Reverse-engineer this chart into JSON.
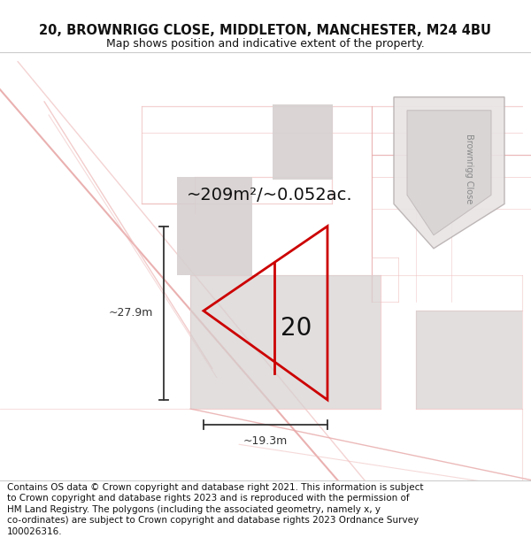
{
  "title": "20, BROWNRIGG CLOSE, MIDDLETON, MANCHESTER, M24 4BU",
  "subtitle": "Map shows position and indicative extent of the property.",
  "area_label": "~209m²/~0.052ac.",
  "width_label": "~19.3m",
  "height_label": "~27.9m",
  "house_number": "20",
  "street_label": "Brownrigg Close",
  "copyright_lines": [
    "Contains OS data © Crown copyright and database right 2021. This information is subject",
    "to Crown copyright and database rights 2023 and is reproduced with the permission of",
    "HM Land Registry. The polygons (including the associated geometry, namely x, y",
    "co-ordinates) are subject to Crown copyright and database rights 2023 Ordnance Survey",
    "100026316."
  ],
  "map_bg": "#f7f4f4",
  "building_color": "#d6d0d0",
  "road_line_color": "#e8a8a8",
  "road_line_color2": "#f0c0c0",
  "property_color": "#cc0000",
  "dim_color": "#333333",
  "title_color": "#111111",
  "title_fontsize": 10.5,
  "subtitle_fontsize": 9,
  "copyright_fontsize": 7.5,
  "area_fontsize": 14,
  "dim_fontsize": 9,
  "house_fontsize": 20
}
